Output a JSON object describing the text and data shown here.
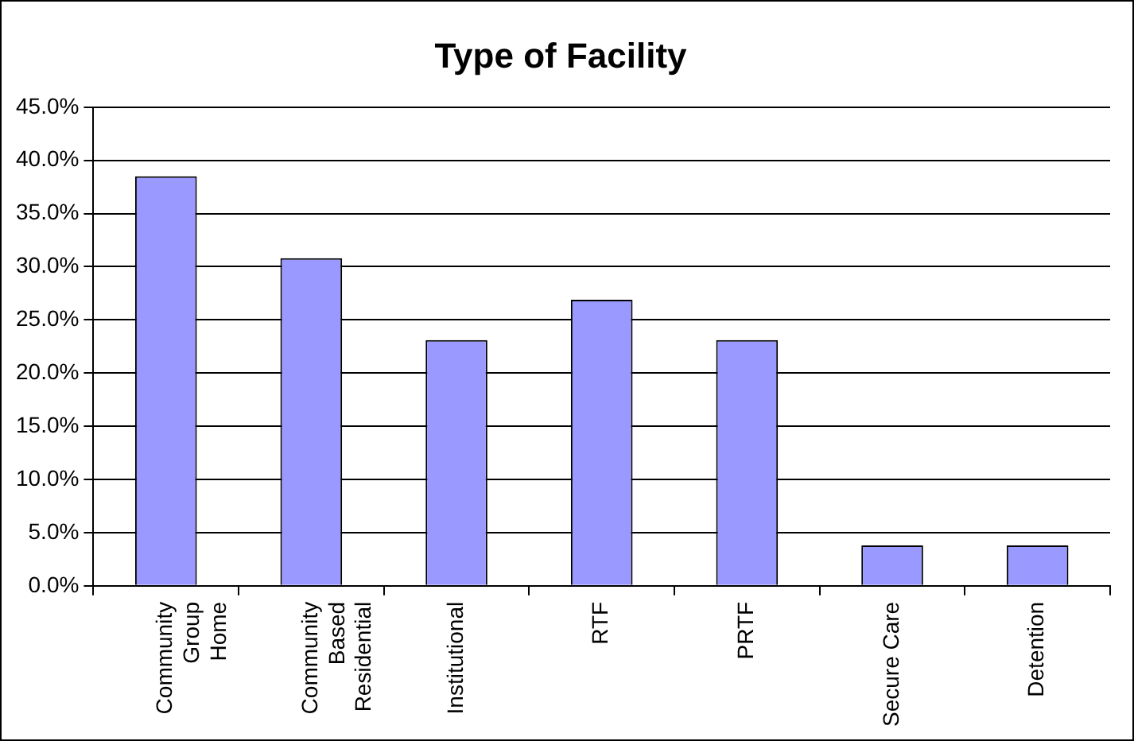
{
  "chart_data": {
    "type": "bar",
    "title": "Type of Facility",
    "categories": [
      "Community Group Home",
      "Community Based Residential",
      "Institutional",
      "RTF",
      "PRTF",
      "Secure Care",
      "Detention"
    ],
    "values": [
      38.5,
      30.8,
      23.1,
      26.9,
      23.1,
      3.8,
      3.8
    ],
    "color": "#9999ff",
    "ylim": [
      0,
      45
    ],
    "yticks": [
      {
        "value": 0,
        "label": "0.0%"
      },
      {
        "value": 5,
        "label": "5.0%"
      },
      {
        "value": 10,
        "label": "10.0%"
      },
      {
        "value": 15,
        "label": "15.0%"
      },
      {
        "value": 20,
        "label": "20.0%"
      },
      {
        "value": 25,
        "label": "25.0%"
      },
      {
        "value": 30,
        "label": "30.0%"
      },
      {
        "value": 35,
        "label": "35.0%"
      },
      {
        "value": 40,
        "label": "40.0%"
      },
      {
        "value": 45,
        "label": "45.0%"
      }
    ],
    "grid": "y",
    "legend": false
  }
}
